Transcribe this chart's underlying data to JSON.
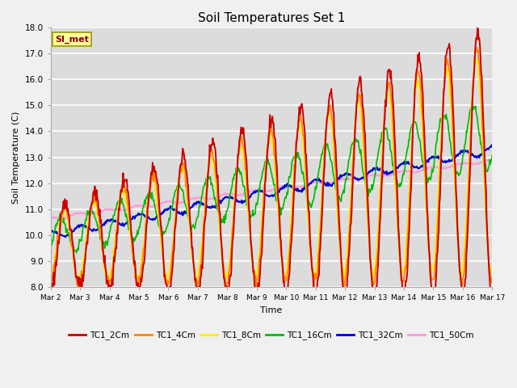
{
  "title": "Soil Temperatures Set 1",
  "xlabel": "Time",
  "ylabel": "Soil Temperature (C)",
  "ylim": [
    8.0,
    18.0
  ],
  "yticks": [
    8.0,
    9.0,
    10.0,
    11.0,
    12.0,
    13.0,
    14.0,
    15.0,
    16.0,
    17.0,
    18.0
  ],
  "xtick_labels": [
    "Mar 2",
    "Mar 3",
    "Mar 4",
    "Mar 5",
    "Mar 6",
    "Mar 7",
    "Mar 8",
    "Mar 9",
    "Mar 10",
    "Mar 11",
    "Mar 12",
    "Mar 13",
    "Mar 14",
    "Mar 15",
    "Mar 16",
    "Mar 17"
  ],
  "series_names": [
    "TC1_2Cm",
    "TC1_4Cm",
    "TC1_8Cm",
    "TC1_16Cm",
    "TC1_32Cm",
    "TC1_50Cm"
  ],
  "series_colors": [
    "#cc0000",
    "#ff8800",
    "#ffee00",
    "#00bb00",
    "#0000cc",
    "#ff99dd"
  ],
  "annotation_text": "SI_met",
  "annotation_bg": "#ffff99",
  "annotation_border": "#999900",
  "plot_bg_color": "#dcdcdc",
  "fig_bg_color": "#f0f0f0",
  "grid_color": "#ffffff",
  "days": 15,
  "n_points": 720
}
